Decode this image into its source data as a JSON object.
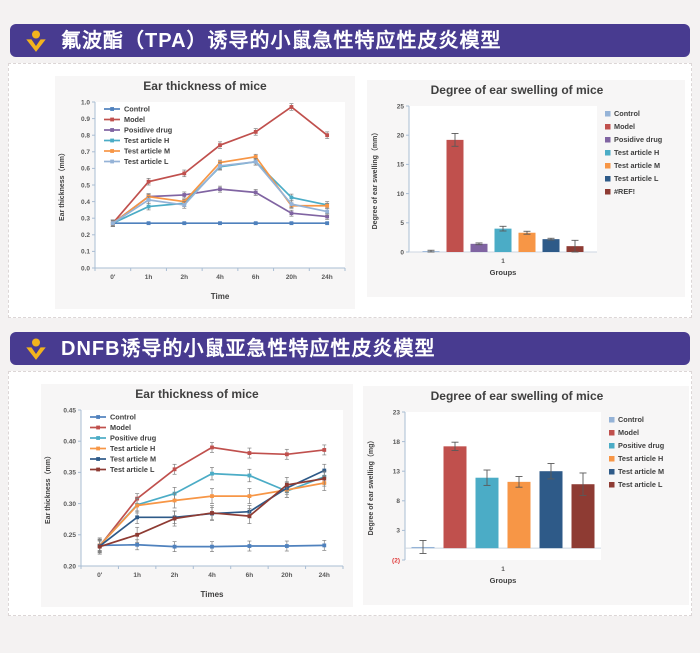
{
  "branding": {
    "banner_bg": "#483b90",
    "icon_color": "#f2b31d",
    "icon": "v-bird-icon"
  },
  "sections": [
    {
      "banner": {
        "title": "氟波酯（TPA）诱导的小鼠急性特应性皮炎模型"
      }
    },
    {
      "banner": {
        "title": "DNFB诱导的小鼠亚急性特应性皮炎模型"
      }
    }
  ],
  "chart_data": [
    {
      "type": "line",
      "title": "Ear thickness of mice",
      "xlabel": "Time",
      "ylabel": "Ear thickness（mm）",
      "categories": [
        "0'",
        "1h",
        "2h",
        "4h",
        "6h",
        "20h",
        "24h"
      ],
      "ylim": [
        0.0,
        1.0
      ],
      "ytick_step": 0.1,
      "ydecimals": 1,
      "grid": false,
      "legend_position": "top-left-inside",
      "series": [
        {
          "name": "Control",
          "color": "#4f81bd",
          "values": [
            0.27,
            0.27,
            0.27,
            0.27,
            0.27,
            0.27,
            0.27
          ],
          "error": 0.005
        },
        {
          "name": "Model",
          "color": "#c0504d",
          "values": [
            0.27,
            0.52,
            0.57,
            0.74,
            0.82,
            0.97,
            0.8
          ],
          "error": 0.02
        },
        {
          "name": "Posidive drug",
          "color": "#8064a2",
          "values": [
            0.27,
            0.43,
            0.44,
            0.475,
            0.455,
            0.33,
            0.31
          ],
          "error": 0.018
        },
        {
          "name": "Test article H",
          "color": "#4bacc6",
          "values": [
            0.27,
            0.37,
            0.39,
            0.61,
            0.64,
            0.425,
            0.38
          ],
          "error": 0.02
        },
        {
          "name": "Test article M",
          "color": "#f79646",
          "values": [
            0.27,
            0.43,
            0.4,
            0.635,
            0.67,
            0.375,
            0.375
          ],
          "error": 0.015
        },
        {
          "name": "Test article L",
          "color": "#95b3d7",
          "values": [
            0.27,
            0.41,
            0.38,
            0.615,
            0.64,
            0.385,
            0.34
          ],
          "error": 0.02
        }
      ]
    },
    {
      "type": "bar",
      "title": "Degree of ear swelling of mice",
      "xlabel": "Groups",
      "ylabel": "Degree of ear swelling（mm）",
      "categories": [
        "1"
      ],
      "ylim": [
        0,
        25
      ],
      "ytick_step": 5,
      "ydecimals": 0,
      "grid": false,
      "legend_position": "right",
      "series": [
        {
          "name": "Control",
          "color": "#95b3d7",
          "value": 0.15,
          "error": 0.15
        },
        {
          "name": "Model",
          "color": "#c0504d",
          "value": 19.2,
          "error": 1.1
        },
        {
          "name": "Posidive drug",
          "color": "#8064a2",
          "value": 1.4,
          "error": 0.15
        },
        {
          "name": "Test article H",
          "color": "#4bacc6",
          "value": 4.0,
          "error": 0.4
        },
        {
          "name": "Test article M",
          "color": "#f79646",
          "value": 3.3,
          "error": 0.25
        },
        {
          "name": "Test article L",
          "color": "#2e5a88",
          "value": 2.2,
          "error": 0.15
        },
        {
          "name": "#REF!",
          "color": "#8e3b33",
          "value": 1.0,
          "error": 1.0
        }
      ]
    },
    {
      "type": "line",
      "title": "Ear thickness of mice",
      "xlabel": "Times",
      "ylabel": "Ear thickness（mm）",
      "categories": [
        "0'",
        "1h",
        "2h",
        "4h",
        "6h",
        "20h",
        "24h"
      ],
      "ylim": [
        0.2,
        0.45
      ],
      "ytick_step": 0.05,
      "ydecimals": 2,
      "grid": false,
      "legend_position": "top-left-inside",
      "series": [
        {
          "name": "Control",
          "color": "#4f81bd",
          "values": [
            0.233,
            0.234,
            0.231,
            0.231,
            0.232,
            0.232,
            0.233
          ],
          "error": 0.008
        },
        {
          "name": "Model",
          "color": "#c0504d",
          "values": [
            0.232,
            0.308,
            0.355,
            0.39,
            0.381,
            0.379,
            0.386
          ],
          "error": 0.008
        },
        {
          "name": "Positive drug",
          "color": "#4bacc6",
          "values": [
            0.233,
            0.298,
            0.316,
            0.348,
            0.345,
            0.32,
            0.343
          ],
          "error": 0.01
        },
        {
          "name": "Test article H",
          "color": "#f79646",
          "values": [
            0.233,
            0.297,
            0.305,
            0.312,
            0.312,
            0.322,
            0.333
          ],
          "error": 0.012
        },
        {
          "name": "Test article M",
          "color": "#2e5a88",
          "values": [
            0.232,
            0.278,
            0.278,
            0.284,
            0.287,
            0.325,
            0.353
          ],
          "error": 0.01
        },
        {
          "name": "Test article L",
          "color": "#8e3b33",
          "values": [
            0.231,
            0.25,
            0.276,
            0.285,
            0.28,
            0.33,
            0.34
          ],
          "error": 0.012
        }
      ]
    },
    {
      "type": "bar",
      "title": "Degree of ear swelling of mice",
      "xlabel": "Groups",
      "ylabel": "Degree of ear swelling（mg）",
      "categories": [
        "1"
      ],
      "ylim": [
        -2,
        23
      ],
      "ytick_step": 5,
      "ydecimals": 0,
      "negative_ticks_red": true,
      "grid": false,
      "legend_position": "right",
      "series": [
        {
          "name": "Control",
          "color": "#95b3d7",
          "value": 0.2,
          "error": 1.1
        },
        {
          "name": "Model",
          "color": "#c0504d",
          "value": 17.2,
          "error": 0.7
        },
        {
          "name": "Positive drug",
          "color": "#4bacc6",
          "value": 11.9,
          "error": 1.3
        },
        {
          "name": "Test article H",
          "color": "#f79646",
          "value": 11.2,
          "error": 0.9
        },
        {
          "name": "Test article M",
          "color": "#2e5a88",
          "value": 13.0,
          "error": 1.3
        },
        {
          "name": "Test article L",
          "color": "#8e3b33",
          "value": 10.8,
          "error": 1.9
        }
      ]
    }
  ]
}
